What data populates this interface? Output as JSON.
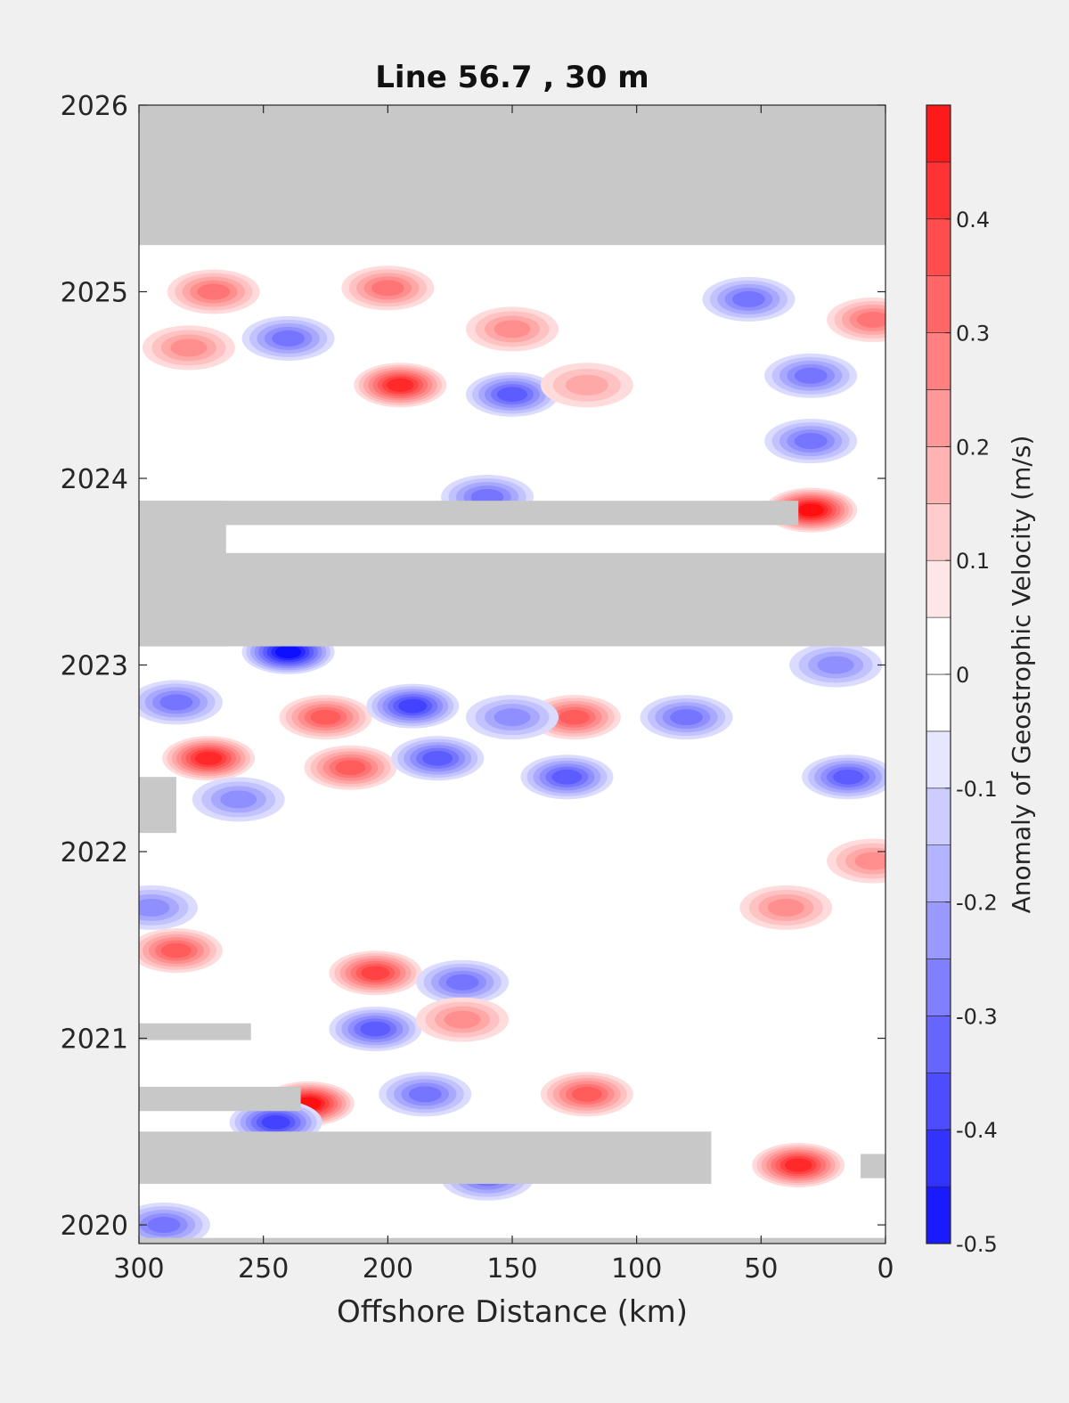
{
  "chart_data": {
    "type": "heatmap",
    "subtype": "filled-contour (Hovmoller)",
    "title": "Line 56.7 , 30 m",
    "xlabel": "Offshore Distance (km)",
    "ylabel": "",
    "xlim": [
      300,
      0
    ],
    "x_reversed": true,
    "ylim": [
      2020,
      2026
    ],
    "x_ticks": [
      300,
      250,
      200,
      150,
      100,
      50,
      0
    ],
    "y_ticks": [
      2020,
      2021,
      2022,
      2023,
      2024,
      2025,
      2026
    ],
    "colorbar": {
      "label": "Anomaly of Geostrophic Velocity (m/s)",
      "range": [
        -0.5,
        0.5
      ],
      "ticks": [
        -0.5,
        -0.4,
        -0.3,
        -0.2,
        -0.1,
        0,
        0.1,
        0.2,
        0.3,
        0.4
      ],
      "levels": [
        -0.5,
        -0.45,
        -0.4,
        -0.35,
        -0.3,
        -0.25,
        -0.2,
        -0.15,
        -0.1,
        -0.05,
        0,
        0.05,
        0.1,
        0.15,
        0.2,
        0.25,
        0.3,
        0.35,
        0.4,
        0.45,
        0.5
      ],
      "colormap": "blue-white-red"
    },
    "missing_data_color": "#c8c8c8",
    "missing_data_bands": [
      {
        "x_from": 300,
        "x_to": 0,
        "y_from": 2025.25,
        "y_to": 2026
      },
      {
        "x_from": 300,
        "x_to": 0,
        "y_from": 2023.1,
        "y_to": 2023.6
      },
      {
        "x_from": 300,
        "x_to": 35,
        "y_from": 2023.75,
        "y_to": 2023.88
      },
      {
        "x_from": 300,
        "x_to": 265,
        "y_from": 2023.1,
        "y_to": 2023.88
      },
      {
        "x_from": 300,
        "x_to": 285,
        "y_from": 2022.1,
        "y_to": 2022.4
      },
      {
        "x_from": 300,
        "x_to": 255,
        "y_from": 2020.99,
        "y_to": 2021.08
      },
      {
        "x_from": 300,
        "x_to": 235,
        "y_from": 2020.61,
        "y_to": 2020.74
      },
      {
        "x_from": 300,
        "x_to": 70,
        "y_from": 2020.22,
        "y_to": 2020.5
      },
      {
        "x_from": 10,
        "x_to": 0,
        "y_from": 2020.25,
        "y_to": 2020.38
      },
      {
        "x_from": 300,
        "x_to": 0,
        "y_from": 2019.9,
        "y_to": 2019.93
      }
    ],
    "features": [
      {
        "x": 195,
        "y": 2024.5,
        "value": 0.4
      },
      {
        "x": 30,
        "y": 2023.83,
        "value": 0.45
      },
      {
        "x": 240,
        "y": 2023.07,
        "value": -0.45
      },
      {
        "x": 272,
        "y": 2022.5,
        "value": 0.4
      },
      {
        "x": 232,
        "y": 2020.65,
        "value": 0.45
      },
      {
        "x": 35,
        "y": 2020.32,
        "value": 0.4
      },
      {
        "x": 205,
        "y": 2021.35,
        "value": 0.35
      },
      {
        "x": 245,
        "y": 2020.55,
        "value": -0.35
      },
      {
        "x": 285,
        "y": 2021.47,
        "value": 0.3
      },
      {
        "x": 215,
        "y": 2022.45,
        "value": 0.3
      },
      {
        "x": 225,
        "y": 2022.72,
        "value": 0.3
      },
      {
        "x": 125,
        "y": 2022.72,
        "value": 0.3
      },
      {
        "x": 190,
        "y": 2022.78,
        "value": -0.35
      },
      {
        "x": 128,
        "y": 2022.4,
        "value": -0.3
      },
      {
        "x": 180,
        "y": 2022.5,
        "value": -0.3
      },
      {
        "x": 15,
        "y": 2022.4,
        "value": -0.3
      },
      {
        "x": 205,
        "y": 2021.05,
        "value": -0.3
      },
      {
        "x": 170,
        "y": 2021.3,
        "value": -0.25
      },
      {
        "x": 185,
        "y": 2020.7,
        "value": -0.25
      },
      {
        "x": 120,
        "y": 2020.7,
        "value": 0.3
      },
      {
        "x": 150,
        "y": 2024.45,
        "value": -0.3
      },
      {
        "x": 30,
        "y": 2024.2,
        "value": -0.25
      },
      {
        "x": 30,
        "y": 2024.55,
        "value": -0.25
      },
      {
        "x": 55,
        "y": 2024.96,
        "value": -0.25
      },
      {
        "x": 240,
        "y": 2024.75,
        "value": -0.25
      },
      {
        "x": 200,
        "y": 2025.02,
        "value": 0.25
      },
      {
        "x": 270,
        "y": 2025.0,
        "value": 0.25
      },
      {
        "x": 5,
        "y": 2024.85,
        "value": 0.25
      },
      {
        "x": 280,
        "y": 2024.7,
        "value": 0.2
      },
      {
        "x": 150,
        "y": 2024.8,
        "value": 0.2
      },
      {
        "x": 120,
        "y": 2024.5,
        "value": 0.15
      },
      {
        "x": 160,
        "y": 2023.9,
        "value": -0.25
      },
      {
        "x": 80,
        "y": 2022.72,
        "value": -0.25
      },
      {
        "x": 150,
        "y": 2022.72,
        "value": -0.2
      },
      {
        "x": 260,
        "y": 2022.28,
        "value": -0.2
      },
      {
        "x": 285,
        "y": 2022.8,
        "value": -0.25
      },
      {
        "x": 290,
        "y": 2020.0,
        "value": -0.25
      },
      {
        "x": 160,
        "y": 2020.25,
        "value": -0.25
      },
      {
        "x": 5,
        "y": 2021.95,
        "value": 0.2
      },
      {
        "x": 40,
        "y": 2021.7,
        "value": 0.2
      },
      {
        "x": 170,
        "y": 2021.1,
        "value": 0.2
      },
      {
        "x": 20,
        "y": 2023.0,
        "value": -0.2
      },
      {
        "x": 295,
        "y": 2021.7,
        "value": -0.2
      }
    ]
  }
}
